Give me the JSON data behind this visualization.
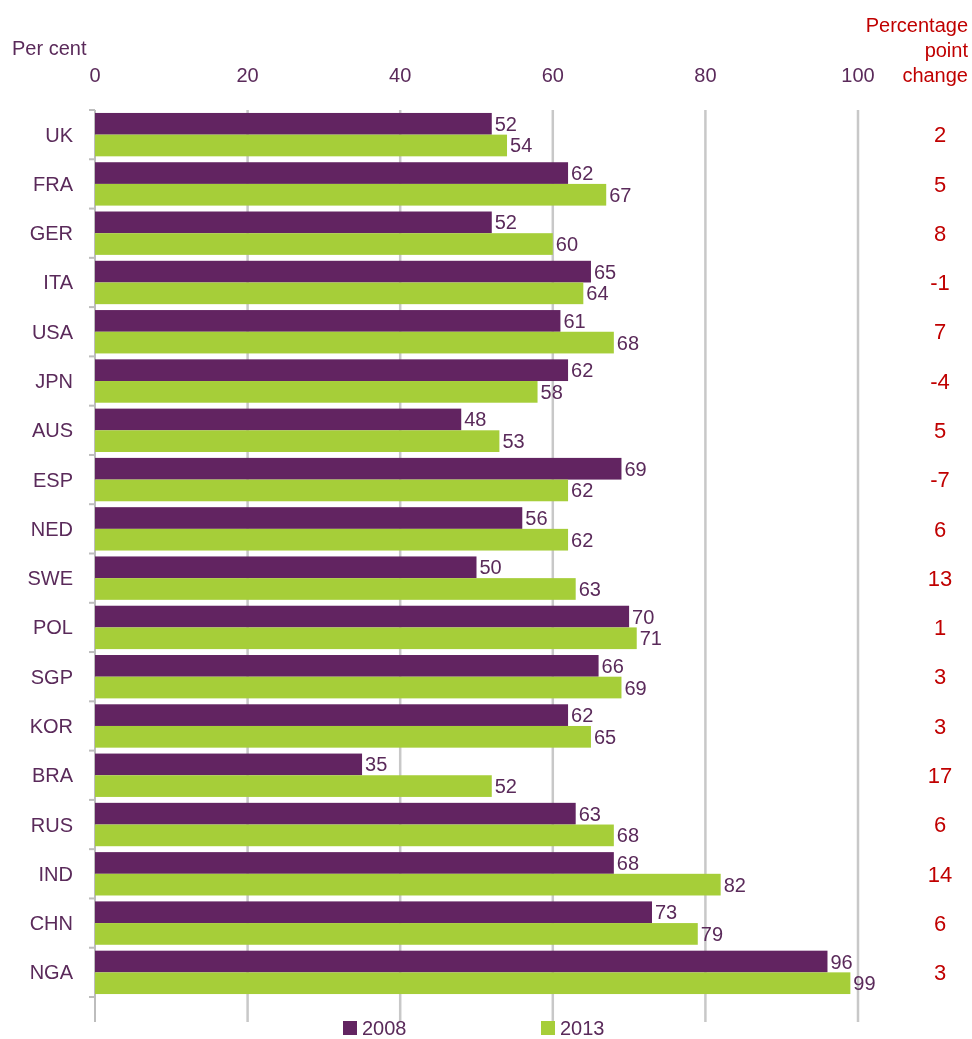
{
  "chart_data": {
    "type": "bar",
    "orientation": "horizontal",
    "xlabel": "Per cent",
    "categories": [
      "UK",
      "FRA",
      "GER",
      "ITA",
      "USA",
      "JPN",
      "AUS",
      "ESP",
      "NED",
      "SWE",
      "POL",
      "SGP",
      "KOR",
      "BRA",
      "RUS",
      "IND",
      "CHN",
      "NGA"
    ],
    "series": [
      {
        "name": "2008",
        "color": "#622461",
        "values": [
          52,
          62,
          52,
          65,
          61,
          62,
          48,
          69,
          56,
          50,
          70,
          66,
          62,
          35,
          63,
          68,
          73,
          96
        ]
      },
      {
        "name": "2013",
        "color": "#a6ce39",
        "values": [
          54,
          67,
          60,
          64,
          68,
          58,
          53,
          62,
          62,
          63,
          71,
          69,
          65,
          52,
          68,
          82,
          79,
          99
        ]
      }
    ],
    "xlim": [
      0,
      100
    ],
    "xticks": [
      0,
      20,
      40,
      60,
      80,
      100
    ],
    "grid": "x",
    "legend": "bottom",
    "data_labels": true,
    "annotations": [
      "Percentage point change",
      "2",
      "5",
      "8",
      "-1",
      "7",
      "-4",
      "5",
      "-7",
      "6",
      "13",
      "1",
      "3",
      "3",
      "17",
      "6",
      "14",
      "6",
      "3"
    ]
  }
}
